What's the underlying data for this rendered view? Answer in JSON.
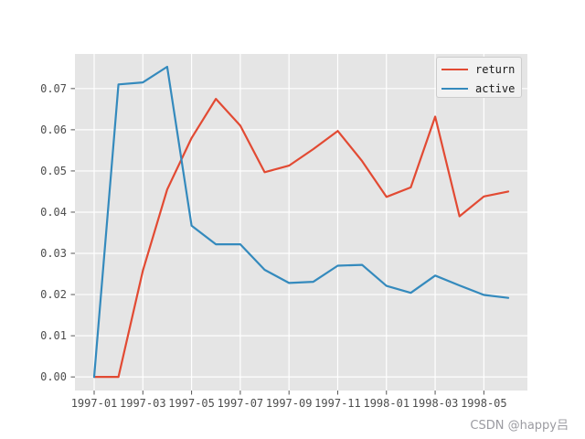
{
  "figure": {
    "background": "#ffffff"
  },
  "watermark": {
    "text": "CSDN @happy吕",
    "color": "#9b9ba1"
  },
  "chart_data": {
    "type": "line",
    "title": "",
    "xlabel": "",
    "ylabel": "",
    "plot_background": "#e5e5e5",
    "grid_color": "#ffffff",
    "grid_on": true,
    "tick_color": "#555555",
    "tick_label_color": "#4d4d4d",
    "x": [
      "1997-01",
      "1997-02",
      "1997-03",
      "1997-04",
      "1997-05",
      "1997-06",
      "1997-07",
      "1997-08",
      "1997-09",
      "1997-10",
      "1997-11",
      "1997-12",
      "1998-01",
      "1998-02",
      "1998-03",
      "1998-04",
      "1998-05",
      "1998-06"
    ],
    "x_tick_labels": [
      "1997-01",
      "1997-03",
      "1997-05",
      "1997-07",
      "1997-09",
      "1997-11",
      "1998-01",
      "1998-03",
      "1998-05"
    ],
    "y_ticks": {
      "values": [
        0.0,
        0.01,
        0.02,
        0.03,
        0.04,
        0.05,
        0.06,
        0.07
      ],
      "labels": [
        "0.00",
        "0.01",
        "0.02",
        "0.03",
        "0.04",
        "0.05",
        "0.06",
        "0.07"
      ]
    },
    "ylim": [
      -0.0033,
      0.0784
    ],
    "series": [
      {
        "name": "return",
        "color": "#e24a33",
        "values": [
          0.0,
          0.0,
          0.0258,
          0.0455,
          0.058,
          0.0675,
          0.061,
          0.0497,
          0.0513,
          0.0553,
          0.0597,
          0.0524,
          0.0437,
          0.046,
          0.0632,
          0.039,
          0.0438,
          0.045
        ]
      },
      {
        "name": "active",
        "color": "#348abd",
        "values": [
          0.0,
          0.071,
          0.0715,
          0.0753,
          0.0367,
          0.0322,
          0.0322,
          0.026,
          0.0228,
          0.0231,
          0.027,
          0.0272,
          0.0221,
          0.0204,
          0.0246,
          0.0222,
          0.0199,
          0.0192
        ]
      }
    ],
    "legend": {
      "position": "upper-right",
      "background": "#f1f1f1",
      "border_color": "#cccccc"
    }
  }
}
